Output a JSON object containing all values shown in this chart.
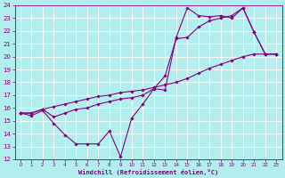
{
  "xlabel": "Windchill (Refroidissement éolien,°C)",
  "bg_color": "#b2eeee",
  "grid_color": "#ffffff",
  "line_color": "#800080",
  "xlim": [
    -0.5,
    23.5
  ],
  "ylim": [
    12,
    24
  ],
  "xticks": [
    0,
    1,
    2,
    3,
    4,
    5,
    6,
    7,
    8,
    9,
    10,
    11,
    12,
    13,
    14,
    15,
    16,
    17,
    18,
    19,
    20,
    21,
    22,
    23
  ],
  "yticks": [
    12,
    13,
    14,
    15,
    16,
    17,
    18,
    19,
    20,
    21,
    22,
    23,
    24
  ],
  "line1_x": [
    0,
    1,
    2,
    3,
    4,
    5,
    6,
    7,
    8,
    9,
    10,
    11,
    12,
    13,
    14,
    15,
    16,
    17,
    18,
    19,
    20,
    21,
    22,
    23
  ],
  "line1_y": [
    15.6,
    15.4,
    15.8,
    14.8,
    13.9,
    13.2,
    13.2,
    13.2,
    14.2,
    12.2,
    15.2,
    16.3,
    17.5,
    17.4,
    21.5,
    23.8,
    23.2,
    23.1,
    23.2,
    23.0,
    23.8,
    21.9,
    20.2,
    20.2
  ],
  "line2_x": [
    0,
    1,
    2,
    3,
    4,
    5,
    6,
    7,
    8,
    9,
    10,
    11,
    12,
    13,
    14,
    15,
    16,
    17,
    18,
    19,
    20,
    21,
    22,
    23
  ],
  "line2_y": [
    15.6,
    15.6,
    15.9,
    16.1,
    16.3,
    16.5,
    16.7,
    16.9,
    17.0,
    17.2,
    17.3,
    17.4,
    17.6,
    17.8,
    18.0,
    18.3,
    18.7,
    19.1,
    19.4,
    19.7,
    20.0,
    20.2,
    20.2,
    20.2
  ],
  "line3_x": [
    0,
    1,
    2,
    3,
    4,
    5,
    6,
    7,
    8,
    9,
    10,
    11,
    12,
    13,
    14,
    15,
    16,
    17,
    18,
    19,
    20,
    21,
    22,
    23
  ],
  "line3_y": [
    15.6,
    15.6,
    15.9,
    15.3,
    15.6,
    15.9,
    16.0,
    16.3,
    16.5,
    16.7,
    16.8,
    17.0,
    17.5,
    18.5,
    21.4,
    21.5,
    22.3,
    22.8,
    23.0,
    23.2,
    23.8,
    21.9,
    20.2,
    20.2
  ]
}
